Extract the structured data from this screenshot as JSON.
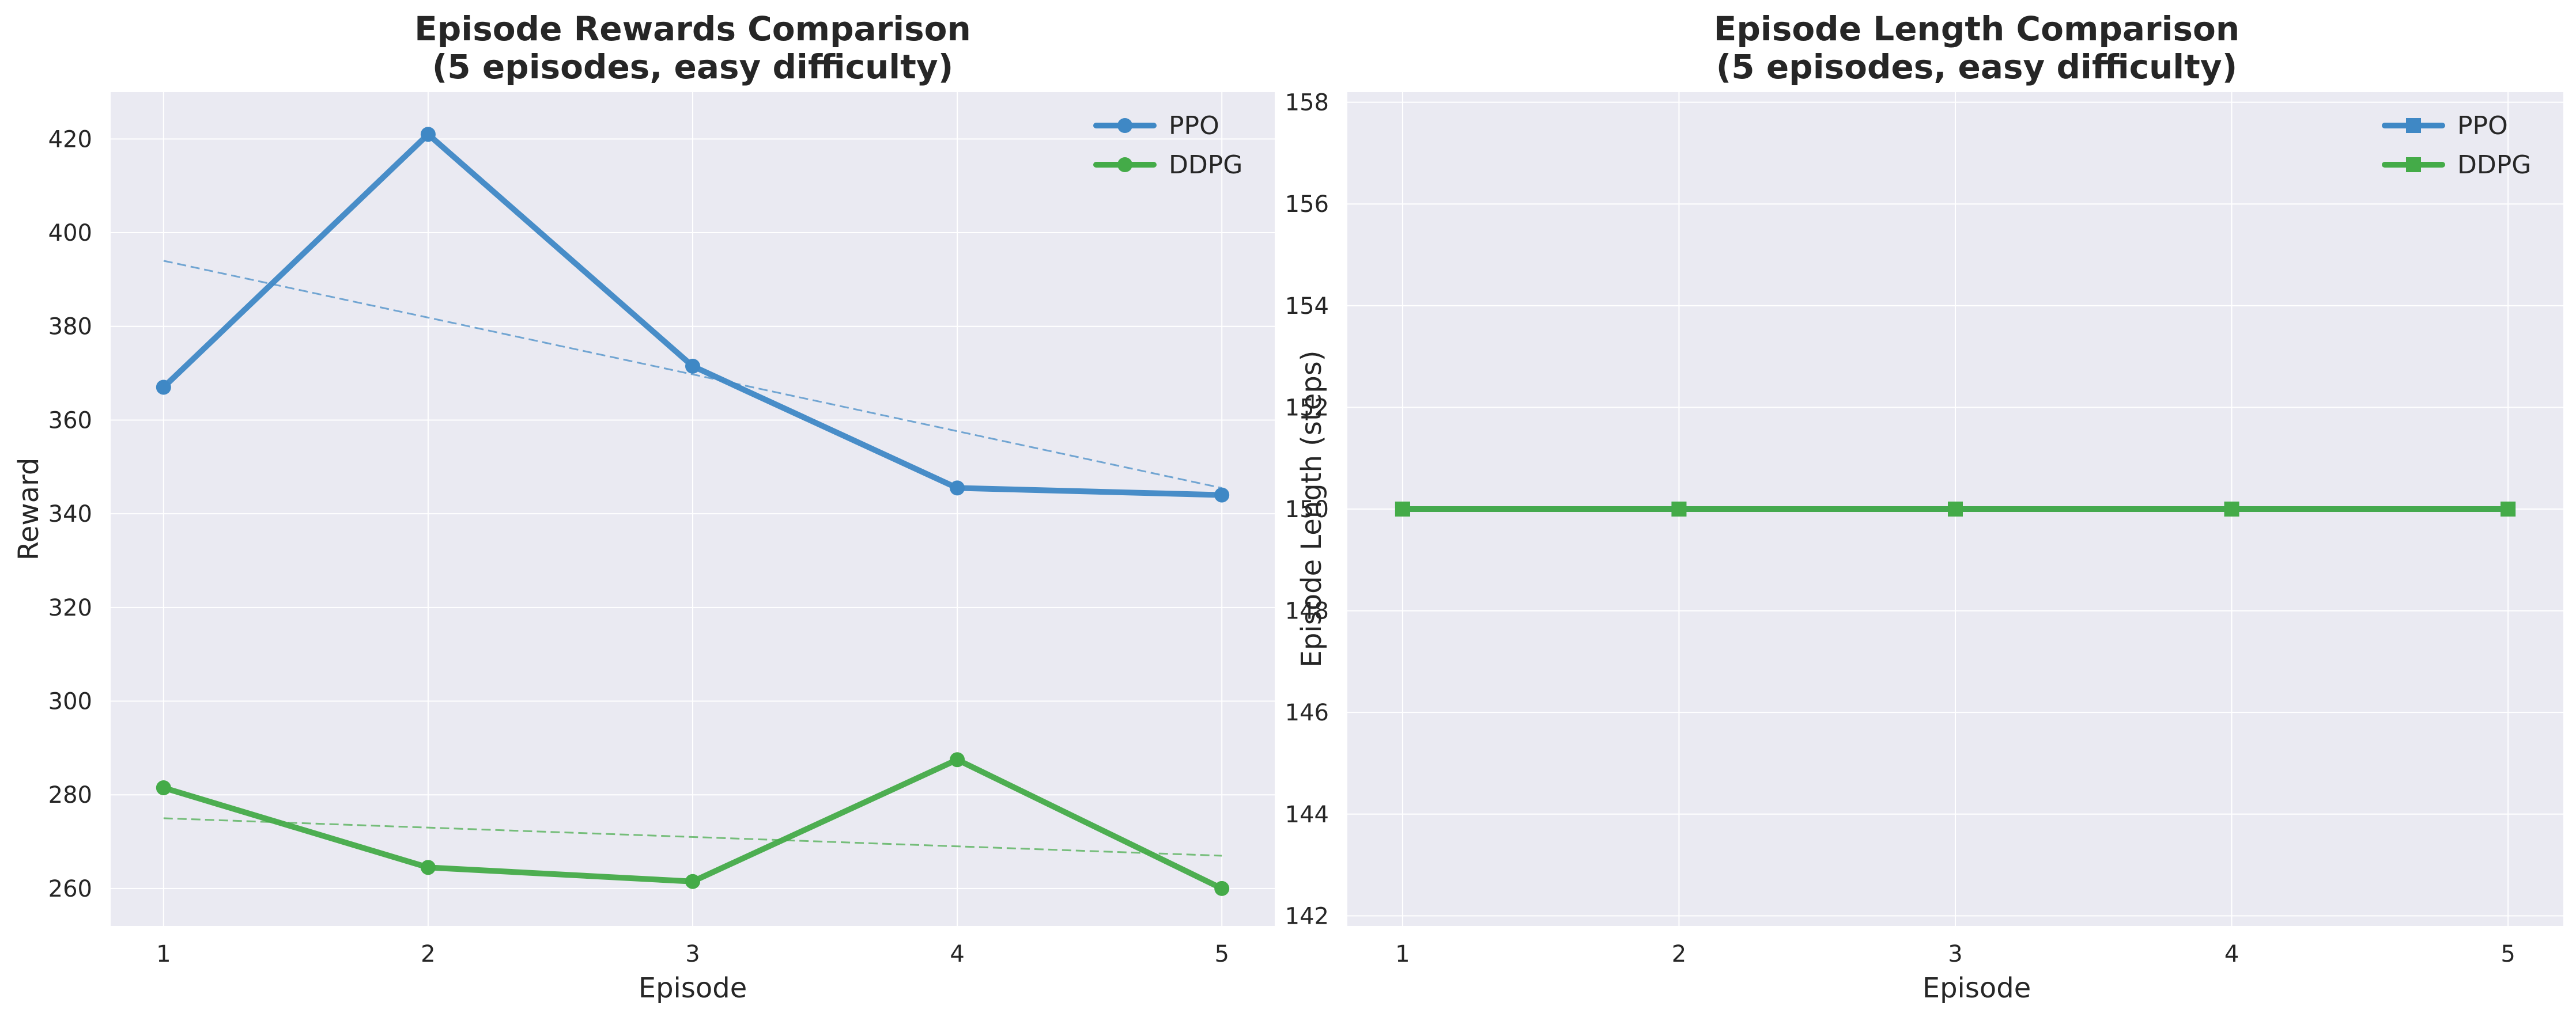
{
  "colors": {
    "ppo": "#3f88c5",
    "ddpg": "#44ab48",
    "plot_bg": "#eaeaf2",
    "grid": "#ffffff"
  },
  "chart_data": [
    {
      "type": "line",
      "title_line1": "Episode Rewards Comparison",
      "title_line2": "(5 episodes, easy difficulty)",
      "xlabel": "Episode",
      "ylabel": "Reward",
      "xlim": [
        0.8,
        5.2
      ],
      "ylim": [
        252,
        430
      ],
      "xticks": [
        1,
        2,
        3,
        4,
        5
      ],
      "yticks": [
        260,
        280,
        300,
        320,
        340,
        360,
        380,
        400,
        420
      ],
      "grid": true,
      "legend_position": "top-right",
      "marker": "circle",
      "x": [
        1,
        2,
        3,
        4,
        5
      ],
      "series": [
        {
          "name": "PPO",
          "values": [
            367,
            421,
            371.5,
            345.5,
            344
          ],
          "color": "#3f88c5",
          "trend": [
            394,
            345.5
          ]
        },
        {
          "name": "DDPG",
          "values": [
            281.5,
            264.5,
            261.5,
            287.5,
            260
          ],
          "color": "#44ab48",
          "trend": [
            275,
            267
          ]
        }
      ]
    },
    {
      "type": "line",
      "title_line1": "Episode Length Comparison",
      "title_line2": "(5 episodes, easy difficulty)",
      "xlabel": "Episode",
      "ylabel": "Episode Length (steps)",
      "xlim": [
        0.8,
        5.2
      ],
      "ylim": [
        141.8,
        158.2
      ],
      "xticks": [
        1,
        2,
        3,
        4,
        5
      ],
      "yticks": [
        142,
        144,
        146,
        148,
        150,
        152,
        154,
        156,
        158
      ],
      "grid": true,
      "legend_position": "top-right",
      "marker": "square",
      "x": [
        1,
        2,
        3,
        4,
        5
      ],
      "series": [
        {
          "name": "PPO",
          "values": [
            150,
            150,
            150,
            150,
            150
          ],
          "color": "#3f88c5"
        },
        {
          "name": "DDPG",
          "values": [
            150,
            150,
            150,
            150,
            150
          ],
          "color": "#44ab48"
        }
      ]
    }
  ]
}
